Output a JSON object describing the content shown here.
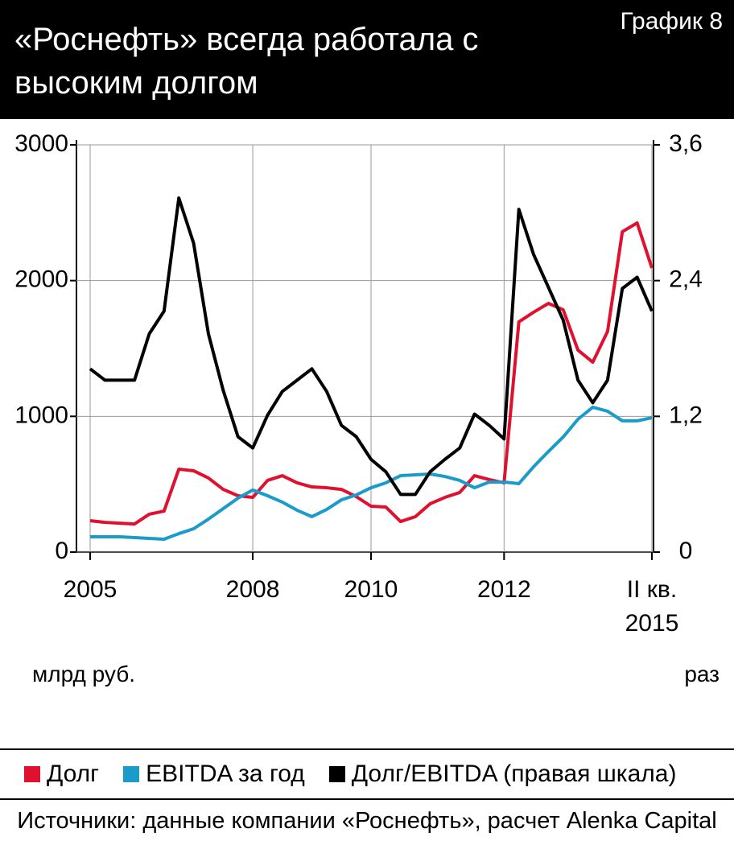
{
  "title": "«Роснефть» всегда работала с высоким долгом",
  "chart_number": "График 8",
  "chart_data": {
    "type": "line",
    "y_label": "млрд руб.",
    "y2_label": "раз",
    "x": [
      0,
      1,
      2,
      3,
      4,
      5,
      6,
      7,
      8,
      9,
      10,
      11,
      12,
      13,
      14,
      15,
      16,
      17,
      18,
      19,
      20,
      21,
      22,
      23,
      24,
      25,
      26,
      27,
      28,
      29,
      30,
      31,
      32,
      33,
      34,
      35,
      36,
      37,
      38
    ],
    "xlim": [
      0,
      38
    ],
    "xticks": [
      {
        "value": 0,
        "label": "2005"
      },
      {
        "value": 11,
        "label": "2008"
      },
      {
        "value": 19,
        "label": "2010"
      },
      {
        "value": 28,
        "label": "2012"
      },
      {
        "value": 38,
        "label": "II кв. 2015"
      }
    ],
    "ylim": [
      0,
      3000
    ],
    "yticks": [
      0,
      1000,
      2000,
      3000
    ],
    "y2lim": [
      0,
      3.6
    ],
    "y2ticks": [
      {
        "value": 0,
        "label": "0"
      },
      {
        "value": 1.2,
        "label": "1,2"
      },
      {
        "value": 2.4,
        "label": "2,4"
      },
      {
        "value": 3.6,
        "label": "3,6"
      }
    ],
    "grid": true,
    "series": [
      {
        "name": "Долг",
        "color": "#e0102f",
        "values": [
          231,
          219,
          213,
          207,
          279,
          302,
          611,
          599,
          546,
          462,
          415,
          403,
          528,
          563,
          510,
          480,
          474,
          462,
          409,
          338,
          332,
          225,
          261,
          356,
          403,
          439,
          563,
          534,
          510,
          1696,
          1767,
          1832,
          1785,
          1488,
          1399,
          1625,
          2360,
          2425,
          2093
        ]
      },
      {
        "name": "EBITDA за год",
        "color": "#1a9bc9",
        "values": [
          113,
          113,
          113,
          107,
          101,
          95,
          136,
          172,
          243,
          320,
          397,
          457,
          415,
          368,
          308,
          261,
          314,
          385,
          421,
          474,
          510,
          563,
          569,
          575,
          557,
          528,
          474,
          516,
          516,
          504,
          629,
          741,
          848,
          979,
          1067,
          1038,
          967,
          967,
          990
        ]
      },
      {
        "name": "Долг/EBITDA (правая шкала)",
        "color": "#000000",
        "axis": "y2",
        "values": [
          1.62,
          1.52,
          1.52,
          1.52,
          1.93,
          2.13,
          3.13,
          2.73,
          1.93,
          1.43,
          1.02,
          0.92,
          1.21,
          1.42,
          1.52,
          1.62,
          1.42,
          1.12,
          1.02,
          0.82,
          0.71,
          0.51,
          0.51,
          0.71,
          0.82,
          0.92,
          1.22,
          1.12,
          1.0,
          3.03,
          2.63,
          2.34,
          2.05,
          1.52,
          1.32,
          1.52,
          2.33,
          2.43,
          2.13
        ]
      }
    ]
  },
  "source": "Источники: данные компании «Роснефть», расчет Alenka Capital"
}
